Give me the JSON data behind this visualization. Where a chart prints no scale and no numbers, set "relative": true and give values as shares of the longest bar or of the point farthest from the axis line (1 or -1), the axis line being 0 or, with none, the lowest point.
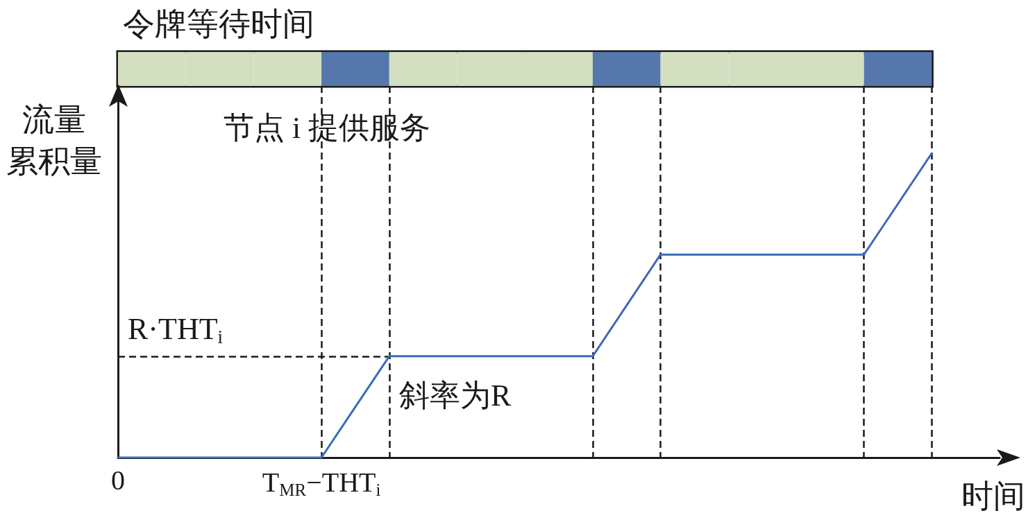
{
  "chart_data": [
    {
      "type": "bar",
      "title": "令牌等待时间",
      "relative": true,
      "categories": [
        null,
        null,
        null,
        null,
        null,
        null,
        null,
        null,
        null,
        null,
        null,
        null
      ],
      "values": [
        1,
        1,
        1,
        1,
        1,
        1,
        1,
        1,
        1,
        1,
        1,
        1
      ],
      "colors": [
        "#d3dfc0",
        "#d3dfc0",
        "#d3dfc0",
        "#5577ab",
        "#d3dfc0",
        "#d3dfc0",
        "#d3dfc0",
        "#5577ab",
        "#d3dfc0",
        "#d3dfc0",
        "#d3dfc0",
        "#5577ab"
      ],
      "tick_labels": false
    },
    {
      "type": "line",
      "relative": true,
      "xlabel": "时间",
      "ylabel": "流量累积量",
      "categories": [
        "0",
        null,
        null,
        "T$_{MR}$−THT$_{i}$",
        null,
        null,
        null,
        null,
        null,
        null,
        null,
        null,
        null,
        null
      ],
      "values": [
        0,
        0,
        0,
        0,
        0.333,
        0.333,
        0.333,
        0.333,
        0.667,
        0.667,
        0.667,
        0.667,
        1,
        null
      ],
      "color": "#3b6cb7",
      "marker": "none",
      "tick_labels": "x",
      "grid": "x",
      "ref_lines": [
        {
          "axis": "y",
          "value": 0.333,
          "label": "R·THT$_{i}$",
          "color": "#1a1a1a",
          "line_style": "dashed"
        }
      ],
      "annotations": [
        "节点 i 提供服务",
        "斜率为R"
      ]
    }
  ]
}
